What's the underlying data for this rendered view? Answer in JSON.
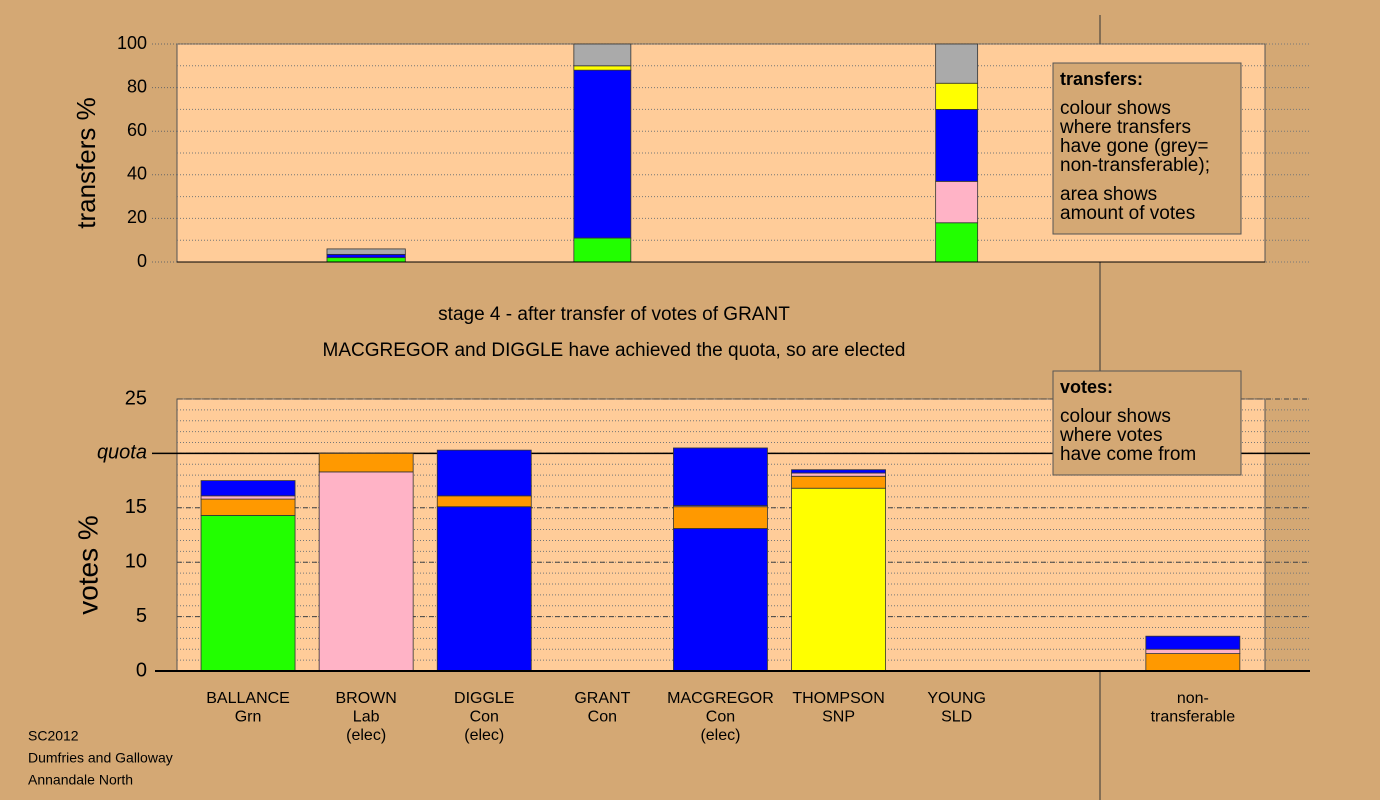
{
  "chart_data": [
    {
      "type": "stacked-bar",
      "ylabel": "transfers %",
      "ylim": [
        0,
        100
      ],
      "yticks": [
        0,
        20,
        40,
        60,
        80,
        100
      ],
      "minor_step": 10,
      "grid": true,
      "amounts": [
        null,
        0.47,
        null,
        5.7,
        null,
        null,
        4.2,
        null,
        null
      ],
      "series": [
        {
          "color": "#22ff00",
          "values": [
            null,
            2,
            null,
            11,
            null,
            null,
            18,
            null,
            null
          ]
        },
        {
          "color": "#ffb3c6",
          "values": [
            null,
            0,
            null,
            0,
            null,
            null,
            19,
            null,
            null
          ]
        },
        {
          "color": "#0000ff",
          "values": [
            null,
            1.5,
            null,
            77,
            null,
            null,
            33,
            null,
            null
          ]
        },
        {
          "color": "#ffff00",
          "values": [
            null,
            0,
            null,
            2,
            null,
            null,
            12,
            null,
            null
          ]
        },
        {
          "color": "#aaaaaa",
          "values": [
            null,
            2.5,
            null,
            10,
            null,
            null,
            18,
            null,
            null
          ]
        }
      ],
      "annotation": {
        "title": "transfers:",
        "lines": [
          "colour shows",
          "where transfers",
          "have gone (grey=",
          "non-transferable);",
          "area shows",
          "amount of votes"
        ]
      }
    },
    {
      "type": "stacked-bar",
      "title": "stage 4 - after transfer of votes of GRANT",
      "subtitle": "MACGREGOR and DIGGLE have achieved the quota, so are elected",
      "ylabel": "votes %",
      "ylim": [
        0,
        25
      ],
      "yticks": [
        0,
        5,
        10,
        15,
        {
          "value": 20,
          "label": "quota"
        },
        25
      ],
      "quota": 20,
      "minor_step": 1,
      "grid": true,
      "categories": [
        [
          "BALLANCE",
          "Grn"
        ],
        [
          "BROWN",
          "Lab",
          "(elec)"
        ],
        [
          "DIGGLE",
          "Con",
          "(elec)"
        ],
        [
          "GRANT",
          "Con"
        ],
        [
          "MACGREGOR",
          "Con",
          "(elec)"
        ],
        [
          "THOMPSON",
          "SNP"
        ],
        [
          "YOUNG",
          "SLD"
        ],
        null,
        [
          "non-",
          "transferable"
        ]
      ],
      "series": [
        {
          "colors": [
            "#22ff00",
            "#ffb3c6",
            "#0000ff",
            null,
            "#0000ff",
            "#ffff00",
            null,
            null,
            null
          ],
          "values": [
            14.3,
            18.3,
            15.1,
            null,
            13.1,
            16.8,
            null,
            null,
            null
          ]
        },
        {
          "color": "#ff9900",
          "values": [
            1.5,
            1.7,
            1.0,
            null,
            2.0,
            1.1,
            null,
            null,
            1.6
          ]
        },
        {
          "color": "#ffb3c6",
          "values": [
            0.3,
            null,
            null,
            null,
            0.1,
            0.3,
            null,
            null,
            0.4
          ]
        },
        {
          "color": "#0000ff",
          "values": [
            1.4,
            null,
            4.2,
            null,
            5.3,
            0.3,
            null,
            null,
            1.2
          ]
        }
      ],
      "annotation": {
        "title": "votes:",
        "lines": [
          "colour shows",
          "where votes",
          "have come from"
        ]
      }
    }
  ],
  "footer": [
    "SC2012",
    "Dumfries and Galloway",
    "Annandale North"
  ]
}
